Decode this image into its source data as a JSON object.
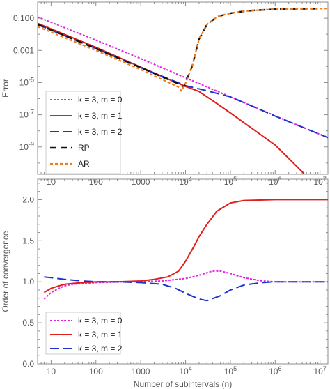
{
  "chart_data": [
    {
      "type": "line",
      "ylabel": "Error",
      "xscale": "log",
      "yscale": "log",
      "xlim": [
        5,
        15000000
      ],
      "ylim": [
        2e-11,
        1
      ],
      "x_ticks": [
        {
          "v": 10,
          "label": "10"
        },
        {
          "v": 100,
          "label": "100"
        },
        {
          "v": 1000,
          "label": "1000"
        },
        {
          "v": 10000,
          "label": "10",
          "sup": "4"
        },
        {
          "v": 100000,
          "label": "10",
          "sup": "5"
        },
        {
          "v": 1000000,
          "label": "10",
          "sup": "6"
        },
        {
          "v": 10000000,
          "label": "10",
          "sup": "7"
        }
      ],
      "y_ticks": [
        {
          "v": 0.1,
          "label": "0.100"
        },
        {
          "v": 0.001,
          "label": "0.001"
        },
        {
          "v": 1e-05,
          "label": "10",
          "sup": "-5"
        },
        {
          "v": 1e-07,
          "label": "10",
          "sup": "-7"
        },
        {
          "v": 1e-09,
          "label": "10",
          "sup": "-9"
        }
      ],
      "legend_position": "bottom-left",
      "series": [
        {
          "name": "k = 3, m = 0",
          "color": "#e51fe5",
          "dash": "3,2",
          "width": 2,
          "x": [
            5,
            100,
            1000,
            10000,
            100000,
            1000000,
            15000000
          ],
          "y": [
            0.12,
            0.0043,
            0.00031,
            2e-05,
            1.3e-06,
            8.5e-08,
            3.8e-09
          ]
        },
        {
          "name": "k = 3, m = 1",
          "color": "#e31c1c",
          "dash": "",
          "width": 2,
          "x": [
            5,
            100,
            1000,
            5000,
            10000,
            20000,
            50000,
            100000,
            1000000,
            4400000
          ],
          "y": [
            0.048,
            0.00155,
            9.2e-05,
            1.3e-05,
            5.8e-06,
            2.8e-06,
            5e-07,
            1.3e-07,
            1.3e-09,
            2.2e-11
          ]
        },
        {
          "name": "k = 3, m = 2",
          "color": "#1a33cc",
          "dash": "13,6",
          "width": 2,
          "x": [
            5,
            100,
            1000,
            10000,
            30000,
            100000,
            1000000,
            15000000
          ],
          "y": [
            0.04,
            0.0013,
            8.5e-05,
            6.5e-06,
            3.1e-06,
            1.3e-06,
            8.3e-08,
            3.8e-09
          ]
        },
        {
          "name": "RP",
          "color": "#111111",
          "dash": "9,6",
          "width": 2.4,
          "x": [
            5,
            100,
            1000,
            8000,
            9000,
            14000,
            20000,
            30000,
            50000,
            80000,
            130000,
            300000,
            1000000,
            3000000,
            10000000
          ],
          "y": [
            0.041,
            0.0013,
            8.5e-05,
            7e-06,
            5e-06,
            0.0001,
            0.005,
            0.04,
            0.12,
            0.18,
            0.23,
            0.3,
            0.36,
            0.38,
            0.39
          ]
        },
        {
          "name": "AR",
          "color": "#f07c1e",
          "dash": "4,3",
          "width": 2.2,
          "x": [
            5,
            100,
            1000,
            7500,
            8000,
            10000,
            14000,
            20000,
            30000,
            50000,
            80000,
            130000,
            300000,
            1000000,
            3000000,
            15000000
          ],
          "y": [
            0.03,
            0.001,
            6.5e-05,
            4.8e-06,
            3e-06,
            9e-06,
            0.0001,
            0.005,
            0.04,
            0.12,
            0.18,
            0.23,
            0.3,
            0.36,
            0.38,
            0.4
          ]
        }
      ]
    },
    {
      "type": "line",
      "xlabel": "Number of subintervals (n)",
      "ylabel": "Order of convergence",
      "xscale": "log",
      "xlim": [
        5,
        15000000
      ],
      "ylim": [
        0,
        2.25
      ],
      "x_ticks": [
        {
          "v": 10,
          "label": "10"
        },
        {
          "v": 100,
          "label": "100"
        },
        {
          "v": 1000,
          "label": "1000"
        },
        {
          "v": 10000,
          "label": "10",
          "sup": "4"
        },
        {
          "v": 100000,
          "label": "10",
          "sup": "5"
        },
        {
          "v": 1000000,
          "label": "10",
          "sup": "6"
        },
        {
          "v": 10000000,
          "label": "10",
          "sup": "7"
        }
      ],
      "y_ticks": [
        {
          "v": 0,
          "label": "0.0"
        },
        {
          "v": 0.5,
          "label": "0.5"
        },
        {
          "v": 1.0,
          "label": "1.0"
        },
        {
          "v": 1.5,
          "label": "1.5"
        },
        {
          "v": 2.0,
          "label": "2.0"
        }
      ],
      "legend_position": "bottom-left",
      "series": [
        {
          "name": "k = 3, m = 0",
          "color": "#e51fe5",
          "dash": "3,2",
          "width": 2,
          "x": [
            7,
            10,
            15,
            20,
            30,
            50,
            100,
            200,
            500,
            1000,
            3000,
            10000,
            20000,
            40000,
            60000,
            100000,
            200000,
            500000,
            1000000,
            15000000
          ],
          "y": [
            0.79,
            0.87,
            0.92,
            0.95,
            0.97,
            0.98,
            0.99,
            0.995,
            1.0,
            1.0,
            1.01,
            1.04,
            1.08,
            1.13,
            1.13,
            1.1,
            1.05,
            1.01,
            1.0,
            1.0
          ]
        },
        {
          "name": "k = 3, m = 1",
          "color": "#e31c1c",
          "dash": "",
          "width": 2,
          "x": [
            7,
            10,
            15,
            20,
            30,
            50,
            100,
            300,
            1000,
            2000,
            4000,
            7000,
            10000,
            15000,
            20000,
            30000,
            50000,
            100000,
            200000,
            1000000,
            15000000
          ],
          "y": [
            0.87,
            0.92,
            0.95,
            0.97,
            0.98,
            0.99,
            1.0,
            1.0,
            1.01,
            1.03,
            1.06,
            1.13,
            1.25,
            1.42,
            1.55,
            1.7,
            1.86,
            1.96,
            1.99,
            2.0,
            2.0
          ]
        },
        {
          "name": "k = 3, m = 2",
          "color": "#1a33cc",
          "dash": "13,6",
          "width": 2,
          "x": [
            7,
            10,
            20,
            50,
            100,
            300,
            1000,
            3000,
            6000,
            10000,
            20000,
            30000,
            60000,
            100000,
            200000,
            500000,
            1000000,
            15000000
          ],
          "y": [
            1.06,
            1.05,
            1.03,
            1.01,
            1.0,
            1.0,
            0.99,
            0.97,
            0.92,
            0.86,
            0.79,
            0.77,
            0.83,
            0.9,
            0.96,
            0.99,
            1.0,
            1.0
          ]
        }
      ]
    }
  ]
}
